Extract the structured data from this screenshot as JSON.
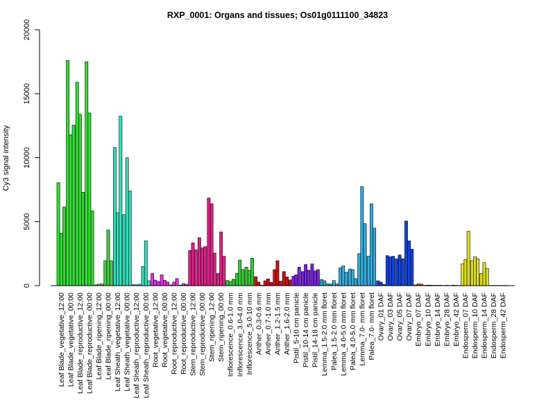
{
  "chart_data": {
    "type": "bar",
    "title": "RXP_0001: Organs and tissues; Os01g0111100_34823",
    "ylabel": "Cy3 signal intensity",
    "xlabel": "",
    "ylim": [
      0,
      20000
    ],
    "yticks": [
      0,
      5000,
      10000,
      15000,
      20000
    ],
    "grid": false,
    "groups": [
      {
        "name": "Leaf Blade_vegetative_12:00",
        "color": "#33dd33",
        "values": [
          8050,
          4100,
          6150
        ]
      },
      {
        "name": "Leaf Blade_vegetative_00:00",
        "color": "#33dd33",
        "values": [
          17600,
          11800,
          12550
        ]
      },
      {
        "name": "Leaf Blade_reproductive_12:00",
        "color": "#33dd33",
        "values": [
          15900,
          13400,
          7300
        ]
      },
      {
        "name": "Leaf Blade_reproductive_00:00",
        "color": "#33dd33",
        "values": [
          17500,
          13500,
          5850
        ]
      },
      {
        "name": "Leaf Blade_ripening_12:00",
        "color": "#44cc44",
        "values": [
          60,
          110,
          130
        ]
      },
      {
        "name": "Leaf Blade_ripening_00:00",
        "color": "#44cc44",
        "values": [
          1950,
          4350,
          1950
        ]
      },
      {
        "name": "Leaf Sheath_vegetative_12:00",
        "color": "#33ddbb",
        "values": [
          10800,
          5700,
          13250
        ]
      },
      {
        "name": "Leaf Sheath_vegetative_00:00",
        "color": "#33ddbb",
        "values": [
          5550,
          10000,
          7400
        ]
      },
      {
        "name": "Leaf Sheath_reproductive_12:00",
        "color": "#33ddbb",
        "values": [
          80,
          60,
          110
        ]
      },
      {
        "name": "Leaf Sheath_reproductive_00:00",
        "color": "#33ddbb",
        "values": [
          1500,
          3500,
          380
        ]
      },
      {
        "name": "Root_vegetative_12:00",
        "color": "#dd33dd",
        "values": [
          950,
          430,
          330
        ]
      },
      {
        "name": "Root_vegetative_00:00",
        "color": "#dd33dd",
        "values": [
          850,
          420,
          280
        ]
      },
      {
        "name": "Root_reproductive_12:00",
        "color": "#dd33dd",
        "values": [
          60,
          280,
          550
        ]
      },
      {
        "name": "Root_reproductive_00:00",
        "color": "#dd33dd",
        "values": [
          50,
          160,
          110
        ]
      },
      {
        "name": "Stem_reproductive_12:00",
        "color": "#dd2288",
        "values": [
          2750,
          3350,
          2800
        ]
      },
      {
        "name": "Stem_reproductive_00:00",
        "color": "#dd2288",
        "values": [
          3750,
          2950,
          3050
        ]
      },
      {
        "name": "Stem_ripening_12:00",
        "color": "#dd2288",
        "values": [
          6850,
          6400,
          2550
        ]
      },
      {
        "name": "Stem_ripening_00:00",
        "color": "#dd2288",
        "values": [
          950,
          4200,
          2300
        ]
      },
      {
        "name": "Inflorescence_0.6-1.0 mm",
        "color": "#33cc33",
        "values": [
          400,
          330,
          500
        ]
      },
      {
        "name": "Inflorescence_3.0-4.0 mm",
        "color": "#33cc33",
        "values": [
          950,
          2000,
          1250
        ]
      },
      {
        "name": "Inflorescence_5.0-10 mm",
        "color": "#33cc33",
        "values": [
          1450,
          1200,
          2150
        ]
      },
      {
        "name": "Anther_0.3-0.6 mm",
        "color": "#cc1111",
        "values": [
          700,
          280,
          40
        ]
      },
      {
        "name": "Anther_0.7-1.0 mm",
        "color": "#cc1111",
        "values": [
          380,
          530,
          250
        ]
      },
      {
        "name": "Anther_1.2-1.5 mm",
        "color": "#cc1111",
        "values": [
          1250,
          1950,
          350
        ]
      },
      {
        "name": "Anther_1.6-2.0 mm",
        "color": "#cc1111",
        "values": [
          1100,
          680,
          450
        ]
      },
      {
        "name": "Pistil_5-10 cm panicle",
        "color": "#7722dd",
        "values": [
          750,
          850,
          1450
        ]
      },
      {
        "name": "Pistil_10-14 cm panicle",
        "color": "#7722dd",
        "values": [
          1100,
          1650,
          1200
        ]
      },
      {
        "name": "Pistil_14-18 cm panicle",
        "color": "#7722dd",
        "values": [
          1700,
          1150,
          1250
        ]
      },
      {
        "name": "Lemma_1.5-2.0 mm floret",
        "color": "#33aadd",
        "values": [
          480,
          380,
          150
        ]
      },
      {
        "name": "Palea_1.5-2.0 mm floret",
        "color": "#33aadd",
        "values": [
          130,
          400,
          140
        ]
      },
      {
        "name": "Lemma_4.0-5.0 mm floret",
        "color": "#33aadd",
        "values": [
          1400,
          1550,
          1050
        ]
      },
      {
        "name": "Palea_4.0-5.0 mm floret",
        "color": "#33aadd",
        "values": [
          1300,
          1250,
          550
        ]
      },
      {
        "name": "Lemma_7.0- mm floret",
        "color": "#33aadd",
        "values": [
          2500,
          7750,
          4850
        ]
      },
      {
        "name": "Palea_7.0- mm floret",
        "color": "#33aadd",
        "values": [
          2300,
          6400,
          4500
        ]
      },
      {
        "name": "Ovary_01 DAF",
        "color": "#1144dd",
        "values": [
          380,
          280,
          100
        ]
      },
      {
        "name": "Ovary_03 DAF",
        "color": "#1144dd",
        "values": [
          2350,
          2250,
          2300
        ]
      },
      {
        "name": "Ovary_05 DAF",
        "color": "#1144dd",
        "values": [
          2100,
          2400,
          2100
        ]
      },
      {
        "name": "Ovary_07 DAF",
        "color": "#1144dd",
        "values": [
          5050,
          3500,
          2850
        ]
      },
      {
        "name": "Embryo_07 DAF",
        "color": "#cc4411",
        "values": [
          60,
          140,
          110
        ]
      },
      {
        "name": "Embryo_10 DAF",
        "color": "#cc4411",
        "values": [
          30,
          40,
          40
        ]
      },
      {
        "name": "Embryo_14 DAF",
        "color": "#cc4411",
        "values": [
          30,
          30,
          30
        ]
      },
      {
        "name": "Embryo_28 DAF",
        "color": "#cc4411",
        "values": [
          20,
          30,
          20
        ]
      },
      {
        "name": "Embryo_42 DAF",
        "color": "#cc4411",
        "values": [
          40,
          30,
          20
        ]
      },
      {
        "name": "Endosperm_07 DAF",
        "color": "#dddd22",
        "values": [
          1700,
          2050,
          4250
        ]
      },
      {
        "name": "Endosperm_10 DAF",
        "color": "#dddd22",
        "values": [
          1950,
          2250,
          2100
        ]
      },
      {
        "name": "Endosperm_14 DAF",
        "color": "#dddd22",
        "values": [
          950,
          1800,
          1350
        ]
      },
      {
        "name": "Endosperm_28 DAF",
        "color": "#dddd22",
        "values": [
          20,
          20,
          20
        ]
      },
      {
        "name": "Endosperm_42 DAF",
        "color": "#dddd22",
        "values": [
          20,
          20,
          20
        ]
      }
    ]
  }
}
